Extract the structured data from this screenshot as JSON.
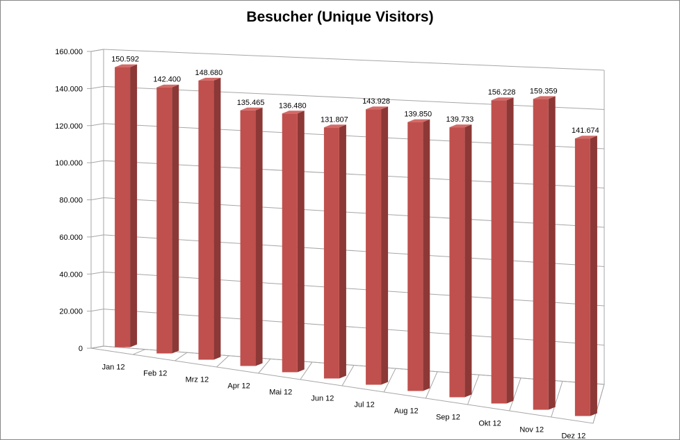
{
  "chart_data": {
    "type": "bar",
    "title": "Besucher (Unique Visitors)",
    "xlabel": "",
    "ylabel": "",
    "ylim": [
      0,
      160000
    ],
    "yticks": [
      0,
      20000,
      40000,
      60000,
      80000,
      100000,
      120000,
      140000,
      160000
    ],
    "ytick_labels": [
      "0",
      "20.000",
      "40.000",
      "60.000",
      "80.000",
      "100.000",
      "120.000",
      "140.000",
      "160.000"
    ],
    "categories": [
      "Jan 12",
      "Feb 12",
      "Mrz 12",
      "Apr 12",
      "Mai 12",
      "Jun 12",
      "Jul 12",
      "Aug 12",
      "Sep 12",
      "Okt 12",
      "Nov 12",
      "Dez 12"
    ],
    "values": [
      150592,
      142400,
      148680,
      135465,
      136480,
      131807,
      143928,
      139850,
      139733,
      156228,
      159359,
      141674
    ],
    "value_labels": [
      "150.592",
      "142.400",
      "148.680",
      "135.465",
      "136.480",
      "131.807",
      "143.928",
      "139.850",
      "139.733",
      "156.228",
      "159.359",
      "141.674"
    ],
    "grid": true,
    "legend": "none",
    "colors": {
      "bar_front": "#C0504D",
      "bar_side": "#8C3836",
      "bar_top": "#D36B68",
      "grid": "#A6A6A6"
    }
  }
}
